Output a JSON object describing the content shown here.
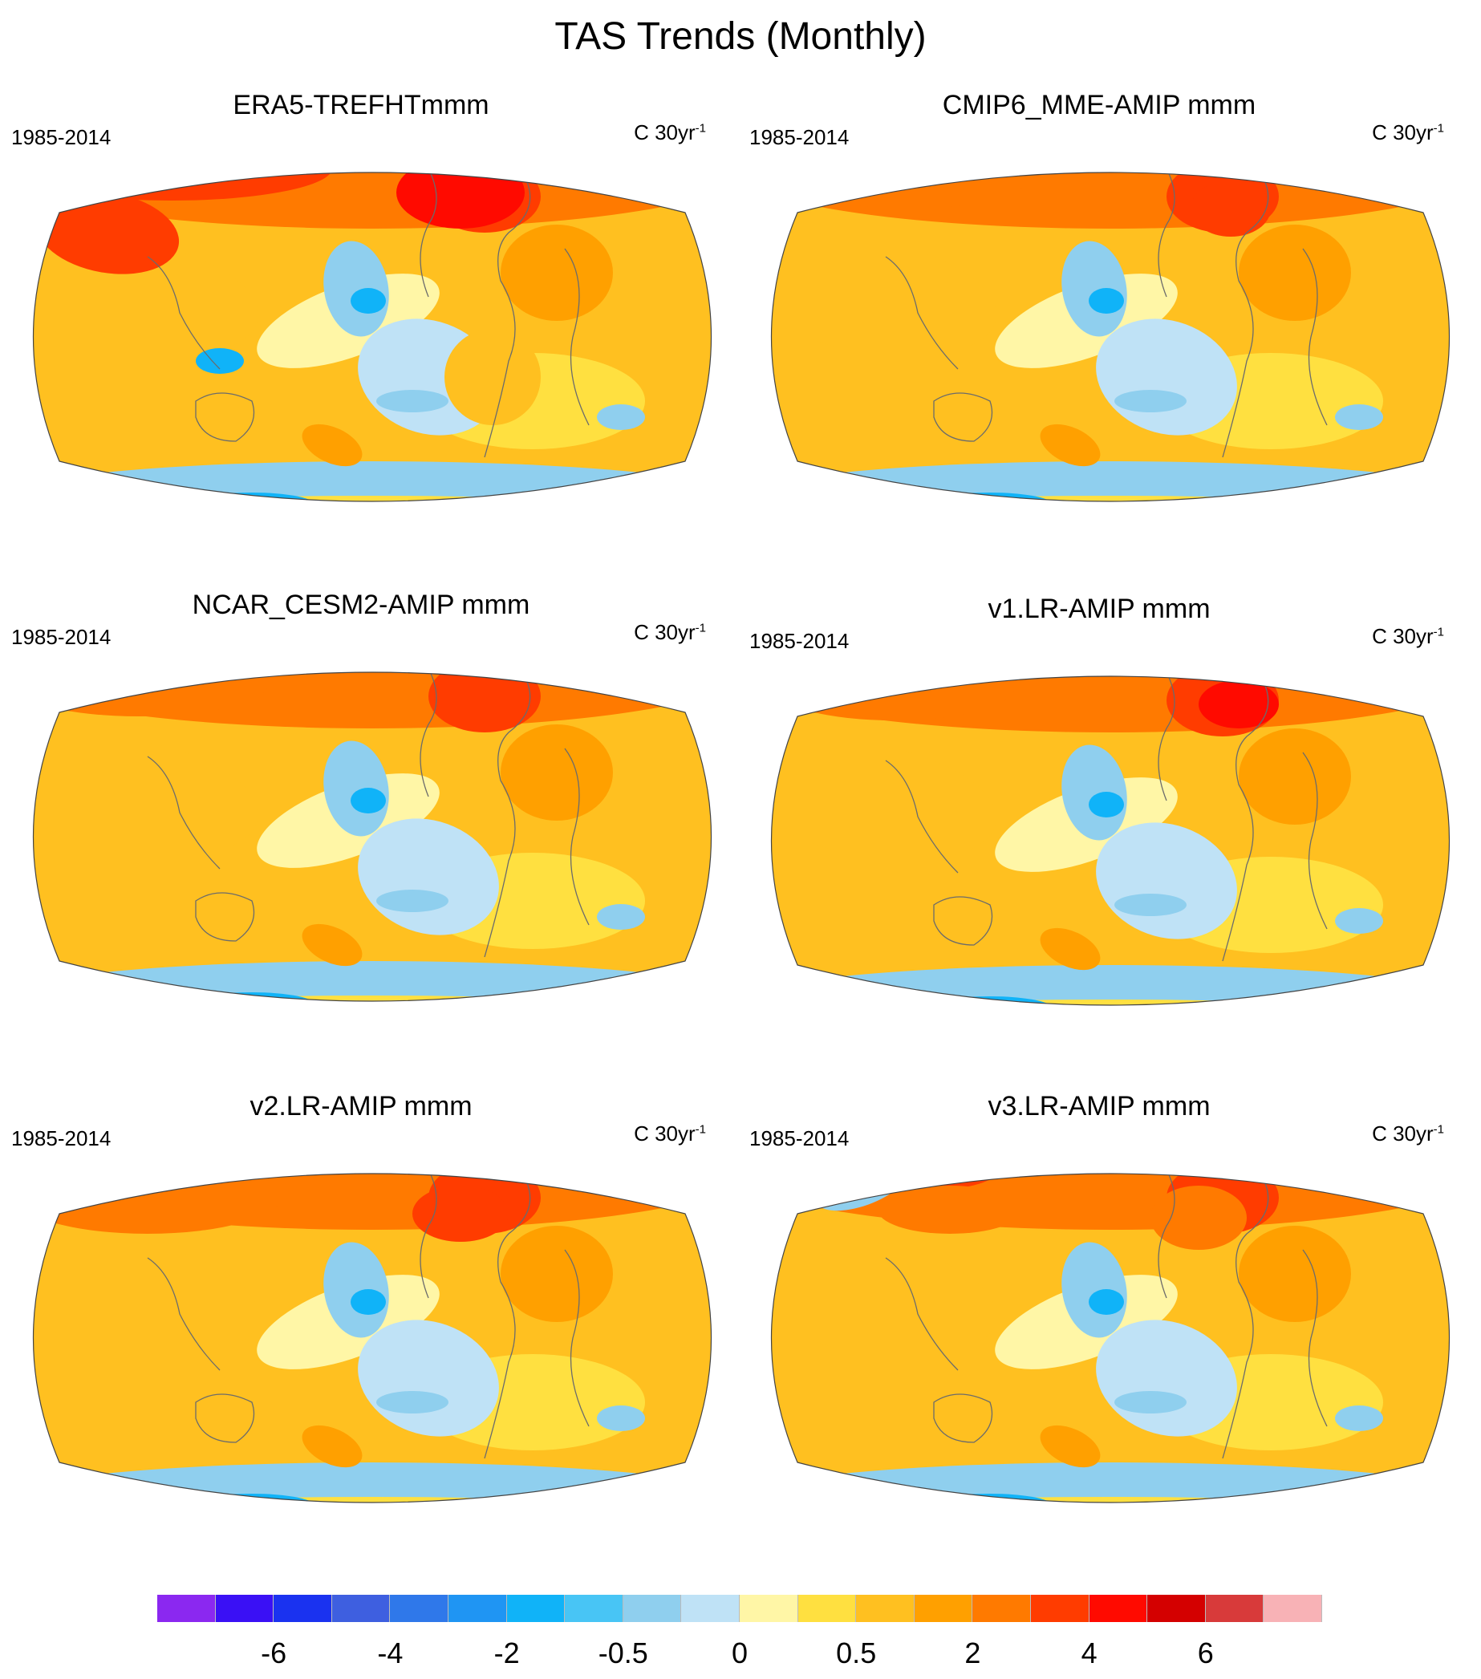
{
  "title": "TAS Trends (Monthly)",
  "panels": [
    {
      "title": "ERA5-TREFHTmmm",
      "period": "1985-2014",
      "units_base": "C 30yr",
      "units_exp": "-1"
    },
    {
      "title": "CMIP6_MME-AMIP  mmm",
      "period": "1985-2014",
      "units_base": "C 30yr",
      "units_exp": "-1"
    },
    {
      "title": "NCAR_CESM2-AMIP  mmm",
      "period": "1985-2014",
      "units_base": "C 30yr",
      "units_exp": "-1"
    },
    {
      "title": "v1.LR-AMIP  mmm",
      "period": "1985-2014",
      "units_base": "C 30yr",
      "units_exp": "-1"
    },
    {
      "title": "v2.LR-AMIP  mmm",
      "period": "1985-2014",
      "units_base": "C 30yr",
      "units_exp": "-1"
    },
    {
      "title": "v3.LR-AMIP  mmm",
      "period": "1985-2014",
      "units_base": "C 30yr",
      "units_exp": "-1"
    }
  ],
  "colorbar": {
    "colors": [
      "#8b28f0",
      "#3a10f5",
      "#1a32f0",
      "#3e5fe0",
      "#2f78ea",
      "#1f95f3",
      "#10b3f8",
      "#48c5f5",
      "#8fcfee",
      "#bfe2f6",
      "#fff6a6",
      "#ffe040",
      "#ffc020",
      "#ffa000",
      "#ff7a00",
      "#ff3c00",
      "#ff0a00",
      "#d40000",
      "#d83a3a",
      "#f8b2b6"
    ],
    "tick_labels": [
      "-6",
      "-4",
      "-2",
      "-0.5",
      "0",
      "0.5",
      "2",
      "4",
      "6"
    ]
  }
}
